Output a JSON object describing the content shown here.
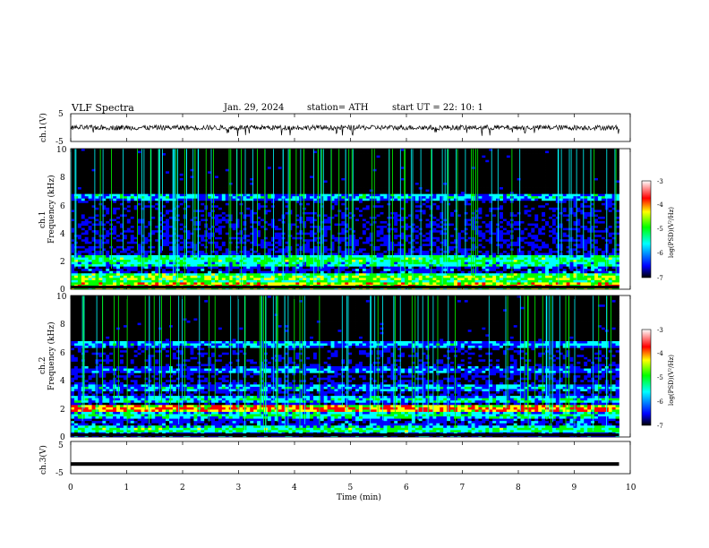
{
  "header": {
    "title": "VLF  Spectra",
    "date": "Jan. 29, 2024",
    "station": "station= ATH",
    "start": "start  UT  =    22: 10: 1"
  },
  "colors": {
    "spec_low": "#000000",
    "spec_blue": "#0000ff",
    "spec_cyan": "#00ffff",
    "spec_green": "#00ff00",
    "spec_yellow": "#ffff00",
    "spec_red": "#ff0000",
    "spec_high": "#ffffff",
    "trace": "#000000"
  },
  "chart_data": [
    {
      "type": "line",
      "panel": "ch.1 waveform",
      "ylabel": "ch.1(V)",
      "ylim": [
        -5,
        5
      ],
      "yticks": [
        "5",
        "-5"
      ],
      "xlim": [
        0,
        10
      ],
      "note": "noisy trace near 0 V spanning 0–9.8 min"
    },
    {
      "type": "heatmap",
      "panel": "ch.1 spectrogram",
      "ylabel_line1": "ch.1",
      "ylabel_line2": "Frequency  (kHz)",
      "ylim": [
        0,
        10
      ],
      "yticks": [
        "0",
        "2",
        "4",
        "6",
        "8",
        "10"
      ],
      "xlim": [
        0,
        9.8
      ],
      "colorbar": {
        "label": "log(PSD)(V²/Hz)",
        "range": [
          -7,
          -3
        ],
        "ticks": [
          "-3",
          "-4",
          "-5",
          "-6",
          "-7"
        ]
      },
      "bands_khz": [
        {
          "f": 0.3,
          "level": -4.3
        },
        {
          "f": 0.8,
          "level": -4.6
        },
        {
          "f": 1.8,
          "level": -5.2
        },
        {
          "f": 2.1,
          "level": -5.0
        },
        {
          "f": 3.5,
          "level": -6.4
        },
        {
          "f": 4.3,
          "level": -6.5
        },
        {
          "f": 6.6,
          "level": -5.5
        }
      ]
    },
    {
      "type": "heatmap",
      "panel": "ch.2 spectrogram",
      "ylabel_line1": "ch.2",
      "ylabel_line2": "Frequency  (kHz)",
      "ylim": [
        0,
        10
      ],
      "yticks": [
        "0",
        "2",
        "4",
        "6",
        "8",
        "10"
      ],
      "xlim": [
        0,
        9.8
      ],
      "colorbar": {
        "label": "log(PSD)(V²/Hz)",
        "range": [
          -7,
          -3
        ],
        "ticks": [
          "-3",
          "-4",
          "-5",
          "-6",
          "-7"
        ]
      },
      "bands_khz": [
        {
          "f": 0.5,
          "level": -5.0
        },
        {
          "f": 1.5,
          "level": -5.2
        },
        {
          "f": 2.0,
          "level": -4.0
        },
        {
          "f": 2.6,
          "level": -5.3
        },
        {
          "f": 3.5,
          "level": -5.6
        },
        {
          "f": 4.7,
          "level": -5.8
        },
        {
          "f": 6.6,
          "level": -5.6
        }
      ]
    },
    {
      "type": "line",
      "panel": "ch.3 waveform",
      "ylabel": "ch.3(V)",
      "ylim": [
        -5,
        5
      ],
      "yticks": [
        "5",
        "-5"
      ],
      "xlim": [
        0,
        10
      ],
      "note": "thick flat trace at about -2 V spanning 0–9.8 min"
    }
  ],
  "xaxis": {
    "label": "Time  (min)",
    "ticks": [
      "0",
      "1",
      "2",
      "3",
      "4",
      "5",
      "6",
      "7",
      "8",
      "9",
      "10"
    ]
  }
}
